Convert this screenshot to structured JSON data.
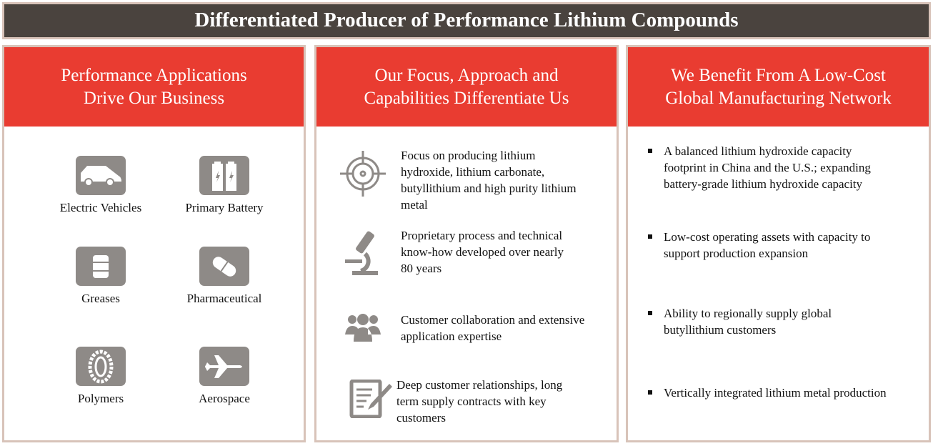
{
  "title": "Differentiated Producer of Performance Lithium Compounds",
  "columns": [
    {
      "header": [
        "Performance Applications",
        "Drive Our Business"
      ],
      "applications": [
        {
          "label": "Electric Vehicles",
          "icon": "car-icon"
        },
        {
          "label": "Primary Battery",
          "icon": "battery-icon"
        },
        {
          "label": "Greases",
          "icon": "barrel-icon"
        },
        {
          "label": "Pharmaceutical",
          "icon": "pill-icon"
        },
        {
          "label": "Polymers",
          "icon": "tire-icon"
        },
        {
          "label": "Aerospace",
          "icon": "airplane-icon"
        }
      ]
    },
    {
      "header": [
        "Our Focus, Approach and",
        "Capabilities Differentiate Us"
      ],
      "items": [
        {
          "icon": "target-icon",
          "lines": [
            "Focus on producing lithium",
            "hydroxide, lithium carbonate,",
            "butyllithium and high purity lithium",
            "metal"
          ]
        },
        {
          "icon": "microscope-icon",
          "lines": [
            "Proprietary process and technical",
            "know-how developed over nearly",
            "80 years"
          ]
        },
        {
          "icon": "people-icon",
          "lines": [
            "Customer collaboration and extensive",
            "application expertise"
          ]
        },
        {
          "icon": "contract-icon",
          "lines": [
            "Deep customer relationships, long",
            "term supply contracts with key",
            "customers"
          ]
        }
      ]
    },
    {
      "header": [
        "We Benefit From A Low-Cost",
        "Global Manufacturing Network"
      ],
      "bullets": [
        {
          "lines": [
            "A balanced lithium hydroxide capacity",
            "footprint in China and the U.S.; expanding",
            "battery-grade lithium hydroxide capacity"
          ]
        },
        {
          "lines": [
            "Low-cost operating assets with capacity to",
            "support production expansion"
          ]
        },
        {
          "lines": [
            "Ability to regionally supply global",
            "butyllithium customers"
          ]
        },
        {
          "lines": [
            "Vertically integrated lithium metal production"
          ]
        }
      ]
    }
  ],
  "colors": {
    "title_bg": "#4a433e",
    "header_bg": "#e93c31",
    "border": "#d8c3b9",
    "icon": "#8e8a87"
  }
}
